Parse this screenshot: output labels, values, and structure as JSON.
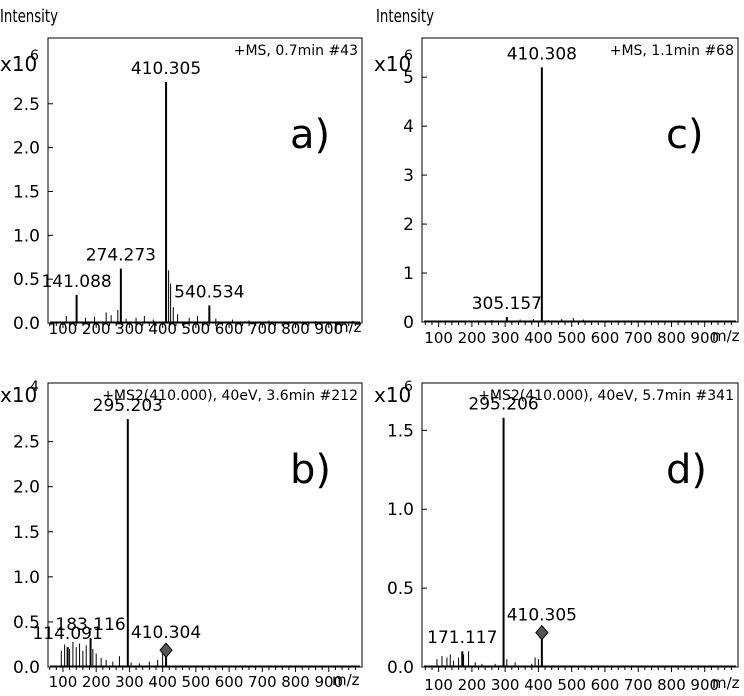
{
  "x_ticks": [
    100,
    200,
    300,
    400,
    500,
    600,
    700,
    800,
    900
  ],
  "x_unit": "m/z",
  "y_title": "Intensity",
  "chart_data": [
    {
      "id": "a",
      "type": "bar",
      "panel_label": "a)",
      "spectrum_label": "+MS, 0.7min #43",
      "y_multiplier": "x10",
      "y_exponent": "6",
      "y_title": "Intensity",
      "ylim": [
        0,
        3.25
      ],
      "xlim": [
        55,
        1000
      ],
      "y_ticks": [
        0.0,
        0.5,
        1.0,
        1.5,
        2.0,
        2.5
      ],
      "y_tick_labels": [
        "0.0",
        "0.5",
        "1.0",
        "1.5",
        "2.0",
        "2.5"
      ],
      "peaks": [
        {
          "mz": 410.305,
          "intensity": 2.75,
          "label": "410.305"
        },
        {
          "mz": 274.273,
          "intensity": 0.62,
          "label": "274.273"
        },
        {
          "mz": 141.088,
          "intensity": 0.32,
          "label": "141.088"
        },
        {
          "mz": 540.534,
          "intensity": 0.2,
          "label": "540.534"
        }
      ],
      "minor_peaks": [
        [
          110,
          0.08
        ],
        [
          168,
          0.06
        ],
        [
          195,
          0.07
        ],
        [
          230,
          0.12
        ],
        [
          245,
          0.09
        ],
        [
          265,
          0.15
        ],
        [
          290,
          0.05
        ],
        [
          320,
          0.06
        ],
        [
          345,
          0.08
        ],
        [
          372,
          0.04
        ],
        [
          418,
          0.6
        ],
        [
          424,
          0.45
        ],
        [
          432,
          0.18
        ],
        [
          445,
          0.1
        ],
        [
          480,
          0.06
        ],
        [
          505,
          0.08
        ],
        [
          560,
          0.05
        ],
        [
          610,
          0.04
        ],
        [
          660,
          0.03
        ],
        [
          720,
          0.03
        ],
        [
          790,
          0.02
        ],
        [
          860,
          0.02
        ]
      ]
    },
    {
      "id": "c",
      "type": "bar",
      "panel_label": "c)",
      "spectrum_label": "+MS, 1.1min #68",
      "y_multiplier": "x10",
      "y_exponent": "6",
      "y_title": "Intensity",
      "ylim": [
        0,
        5.8
      ],
      "xlim": [
        50,
        1000
      ],
      "y_ticks": [
        0,
        1,
        2,
        3,
        4,
        5
      ],
      "y_tick_labels": [
        "0",
        "1",
        "2",
        "3",
        "4",
        "5"
      ],
      "peaks": [
        {
          "mz": 410.308,
          "intensity": 5.2,
          "label": "410.308"
        },
        {
          "mz": 305.157,
          "intensity": 0.1,
          "label": "305.157"
        }
      ],
      "minor_peaks": [
        [
          260,
          0.04
        ],
        [
          305,
          0.1
        ],
        [
          345,
          0.05
        ],
        [
          385,
          0.06
        ],
        [
          430,
          0.04
        ],
        [
          470,
          0.06
        ],
        [
          505,
          0.08
        ],
        [
          535,
          0.05
        ],
        [
          580,
          0.03
        ],
        [
          640,
          0.02
        ]
      ]
    },
    {
      "id": "b",
      "type": "bar",
      "panel_label": "b)",
      "spectrum_label": "+MS2(410.000), 40eV, 3.6min #212",
      "y_multiplier": "x10",
      "y_exponent": "4",
      "ylim": [
        0,
        3.15
      ],
      "xlim": [
        55,
        1000
      ],
      "y_ticks": [
        0.0,
        0.5,
        1.0,
        1.5,
        2.0,
        2.5
      ],
      "y_tick_labels": [
        "0.0",
        "0.5",
        "1.0",
        "1.5",
        "2.0",
        "2.5"
      ],
      "peaks": [
        {
          "mz": 295.203,
          "intensity": 2.75,
          "label": "295.203"
        },
        {
          "mz": 183.116,
          "intensity": 0.32,
          "label": "183.116"
        },
        {
          "mz": 114.091,
          "intensity": 0.22,
          "label": "114.091"
        },
        {
          "mz": 410.304,
          "intensity": 0.12,
          "label": "410.304",
          "marker": "diamond"
        }
      ],
      "minor_peaks": [
        [
          95,
          0.18
        ],
        [
          105,
          0.25
        ],
        [
          120,
          0.2
        ],
        [
          130,
          0.28
        ],
        [
          140,
          0.22
        ],
        [
          150,
          0.26
        ],
        [
          160,
          0.18
        ],
        [
          170,
          0.24
        ],
        [
          190,
          0.2
        ],
        [
          200,
          0.15
        ],
        [
          215,
          0.1
        ],
        [
          230,
          0.08
        ],
        [
          250,
          0.06
        ],
        [
          270,
          0.12
        ],
        [
          305,
          0.05
        ],
        [
          330,
          0.04
        ],
        [
          360,
          0.06
        ],
        [
          385,
          0.08
        ],
        [
          400,
          0.2
        ]
      ]
    },
    {
      "id": "d",
      "type": "bar",
      "panel_label": "d)",
      "spectrum_label": "+MS2(410.000), 40eV, 5.7min #341",
      "y_multiplier": "x10",
      "y_exponent": "6",
      "ylim": [
        0,
        1.8
      ],
      "xlim": [
        50,
        1000
      ],
      "y_ticks": [
        0.0,
        0.5,
        1.0,
        1.5
      ],
      "y_tick_labels": [
        "0.0",
        "0.5",
        "1.0",
        "1.5"
      ],
      "peaks": [
        {
          "mz": 295.206,
          "intensity": 1.58,
          "label": "295.206"
        },
        {
          "mz": 410.305,
          "intensity": 0.18,
          "label": "410.305",
          "marker": "diamond"
        },
        {
          "mz": 171.117,
          "intensity": 0.1,
          "label": "171.117"
        }
      ],
      "minor_peaks": [
        [
          95,
          0.05
        ],
        [
          110,
          0.07
        ],
        [
          125,
          0.06
        ],
        [
          135,
          0.08
        ],
        [
          145,
          0.04
        ],
        [
          160,
          0.06
        ],
        [
          175,
          0.08
        ],
        [
          190,
          0.1
        ],
        [
          210,
          0.03
        ],
        [
          230,
          0.02
        ],
        [
          270,
          0.02
        ],
        [
          305,
          0.05
        ],
        [
          330,
          0.03
        ],
        [
          380,
          0.02
        ],
        [
          390,
          0.06
        ],
        [
          400,
          0.05
        ]
      ]
    }
  ]
}
